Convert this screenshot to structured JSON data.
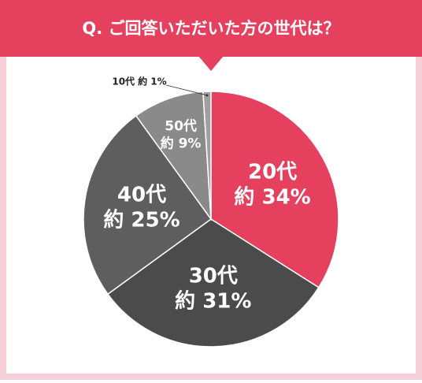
{
  "chart_data": {
    "type": "pie",
    "title": "Q. ご回答いただいた方の世代は？",
    "categories": [
      "20代",
      "30代",
      "40代",
      "50代",
      "10代"
    ],
    "values": [
      34,
      31,
      25,
      9,
      1
    ],
    "value_labels": [
      "約 34%",
      "約 31%",
      "約 25%",
      "約 9%",
      "約 1%"
    ],
    "colors": [
      "#e5405e",
      "#4b4b4b",
      "#5e5e5e",
      "#8a8a8a",
      "#a0a0a0"
    ]
  }
}
